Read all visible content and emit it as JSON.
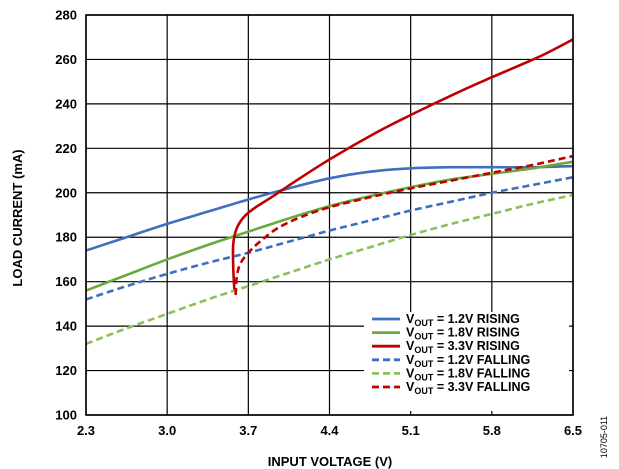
{
  "chart_data": {
    "type": "line",
    "xlabel": "INPUT VOLTAGE (V)",
    "ylabel": "LOAD CURRENT (mA)",
    "xlim": [
      2.3,
      6.5
    ],
    "ylim": [
      100,
      280
    ],
    "xticks": [
      "2.3",
      "3.0",
      "3.7",
      "4.4",
      "5.1",
      "5.8",
      "6.5"
    ],
    "yticks": [
      "100",
      "120",
      "140",
      "160",
      "180",
      "200",
      "220",
      "240",
      "260",
      "280"
    ],
    "grid": true,
    "legend_position": "bottom-right",
    "figure_id": "10705-011",
    "series": [
      {
        "name": "V_OUT = 1.2V RISING",
        "legend": {
          "pre": "V",
          "sub": "OUT",
          "post": " = 1.2V RISING"
        },
        "color": "#3F6FBF",
        "dash": "solid",
        "x": [
          2.3,
          2.65,
          3.0,
          3.35,
          3.7,
          4.05,
          4.4,
          4.75,
          5.1,
          5.45,
          5.8,
          6.15,
          6.5
        ],
        "y": [
          174,
          180,
          186,
          191.5,
          197,
          202,
          206.5,
          209.5,
          211,
          211.5,
          211.5,
          211.5,
          212
        ]
      },
      {
        "name": "V_OUT = 1.8V RISING",
        "legend": {
          "pre": "V",
          "sub": "OUT",
          "post": " = 1.8V RISING"
        },
        "color": "#6AAA3C",
        "dash": "solid",
        "x": [
          2.3,
          2.65,
          3.0,
          3.35,
          3.7,
          4.05,
          4.4,
          4.75,
          5.1,
          5.45,
          5.8,
          6.15,
          6.5
        ],
        "y": [
          156,
          163,
          170,
          176.5,
          182.5,
          188.5,
          194,
          198.5,
          202.5,
          206,
          208.5,
          211,
          214
        ]
      },
      {
        "name": "V_OUT = 3.3V RISING",
        "legend": {
          "pre": "V",
          "sub": "OUT",
          "post": " = 3.3V RISING"
        },
        "color": "#C00000",
        "dash": "solid",
        "x": [
          3.58,
          3.57,
          3.57,
          3.6,
          3.66,
          3.75,
          3.9,
          4.1,
          4.4,
          4.8,
          5.1,
          5.5,
          5.8,
          6.2,
          6.5
        ],
        "y": [
          156,
          166,
          177,
          184,
          189,
          193,
          198,
          205,
          215,
          227,
          235,
          245,
          252,
          261,
          269
        ]
      },
      {
        "name": "V_OUT = 1.2V FALLING",
        "legend": {
          "pre": "V",
          "sub": "OUT",
          "post": " = 1.2V FALLING"
        },
        "color": "#3F6FBF",
        "dash": "dashed",
        "x": [
          2.3,
          2.65,
          3.0,
          3.35,
          3.7,
          4.05,
          4.4,
          4.75,
          5.1,
          5.45,
          5.8,
          6.15,
          6.5
        ],
        "y": [
          152,
          158,
          163.5,
          168.5,
          173,
          178,
          183,
          187.5,
          192,
          196,
          200,
          203.5,
          207
        ]
      },
      {
        "name": "V_OUT = 1.8V FALLING",
        "legend": {
          "pre": "V",
          "sub": "OUT",
          "post": " = 1.8V FALLING"
        },
        "color": "#8CC05A",
        "dash": "dashed",
        "x": [
          2.3,
          2.65,
          3.0,
          3.35,
          3.7,
          4.05,
          4.4,
          4.75,
          5.1,
          5.45,
          5.8,
          6.15,
          6.5
        ],
        "y": [
          132,
          139,
          145.5,
          152,
          158,
          164,
          170,
          175.5,
          181,
          186,
          190.5,
          195,
          199
        ]
      },
      {
        "name": "V_OUT = 3.3V FALLING",
        "legend": {
          "pre": "V",
          "sub": "OUT",
          "post": " = 3.3V FALLING"
        },
        "color": "#C00000",
        "dash": "dashed",
        "x": [
          3.59,
          3.6,
          3.63,
          3.7,
          3.8,
          3.95,
          4.15,
          4.4,
          4.75,
          5.1,
          5.45,
          5.8,
          6.15,
          6.5
        ],
        "y": [
          154,
          162,
          168,
          173,
          178,
          184,
          189,
          193.5,
          198,
          202,
          205.5,
          209,
          212.5,
          216.5
        ]
      }
    ]
  }
}
